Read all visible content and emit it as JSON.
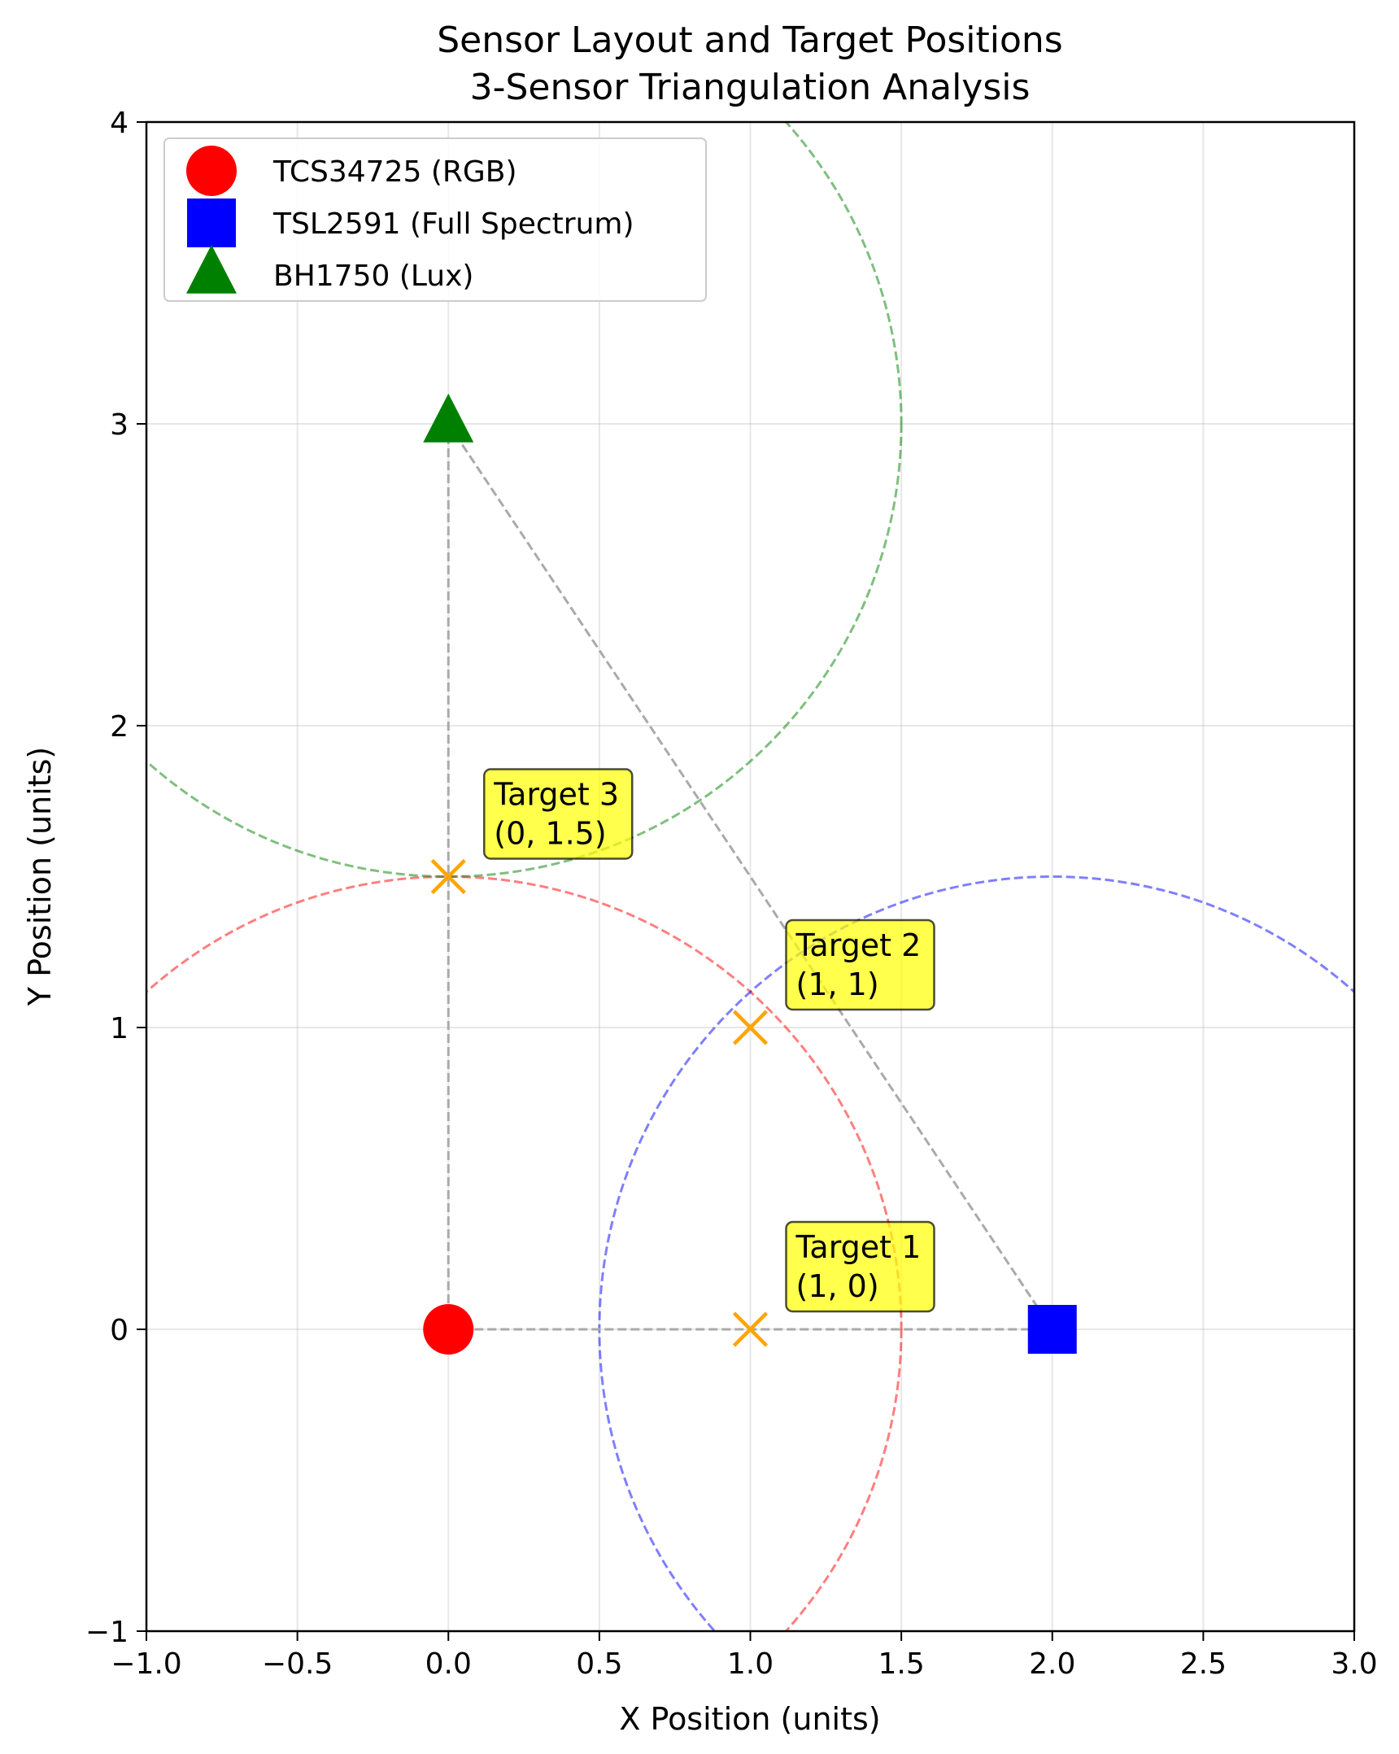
{
  "chart_data": {
    "type": "scatter",
    "title": "Sensor Layout and Target Positions",
    "subtitle": "3-Sensor Triangulation Analysis",
    "xlabel": "X Position (units)",
    "ylabel": "Y Position (units)",
    "xlim": [
      -1.0,
      3.0
    ],
    "ylim": [
      -1,
      4
    ],
    "xticks": [
      -1.0,
      -0.5,
      0.0,
      0.5,
      1.0,
      1.5,
      2.0,
      2.5,
      3.0
    ],
    "xtick_labels": [
      "−1.0",
      "−0.5",
      "0.0",
      "0.5",
      "1.0",
      "1.5",
      "2.0",
      "2.5",
      "3.0"
    ],
    "yticks": [
      -1,
      0,
      1,
      2,
      3,
      4
    ],
    "ytick_labels": [
      "−1",
      "0",
      "1",
      "2",
      "3",
      "4"
    ],
    "grid": true,
    "legend_position": "upper-left",
    "sensors": [
      {
        "name": "TCS34725 (RGB)",
        "x": 0,
        "y": 0,
        "marker": "circle",
        "color": "#ff0000"
      },
      {
        "name": "TSL2591 (Full Spectrum)",
        "x": 2,
        "y": 0,
        "marker": "square",
        "color": "#0000ff"
      },
      {
        "name": "BH1750 (Lux)",
        "x": 0,
        "y": 3,
        "marker": "triangle",
        "color": "#008000"
      }
    ],
    "baselines": [
      {
        "from": [
          0,
          0
        ],
        "to": [
          2,
          0
        ]
      },
      {
        "from": [
          0,
          0
        ],
        "to": [
          0,
          3
        ]
      },
      {
        "from": [
          2,
          0
        ],
        "to": [
          0,
          3
        ]
      }
    ],
    "baseline_color": "#aaaaaa",
    "range_circles": [
      {
        "center": [
          0,
          0
        ],
        "radius": 1.5,
        "color": "#ff0000"
      },
      {
        "center": [
          2,
          0
        ],
        "radius": 1.5,
        "color": "#0000ff"
      },
      {
        "center": [
          0,
          3
        ],
        "radius": 1.5,
        "color": "#008000"
      }
    ],
    "targets": [
      {
        "label": "Target 1",
        "coords": "(1, 0)",
        "x": 1,
        "y": 0
      },
      {
        "label": "Target 2",
        "coords": "(1, 1)",
        "x": 1,
        "y": 1
      },
      {
        "label": "Target 3",
        "coords": "(0, 1.5)",
        "x": 0,
        "y": 1.5
      }
    ],
    "target_color": "#ffa500",
    "annotation_fill": "#ffff00"
  }
}
